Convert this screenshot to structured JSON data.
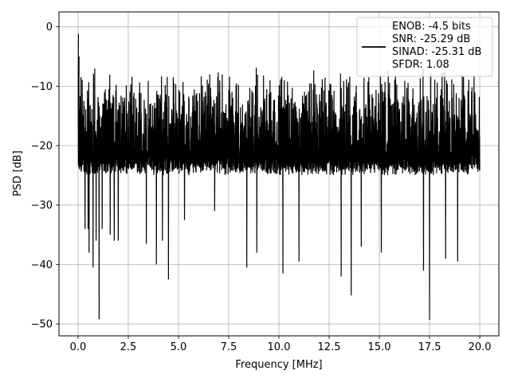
{
  "chart_data": {
    "type": "line",
    "xlabel": "Frequency [MHz]",
    "ylabel": "PSD [dB]",
    "xlim": [
      -0.95,
      20.95
    ],
    "ylim": [
      -52.0,
      2.5
    ],
    "xticks": [
      0.0,
      2.5,
      5.0,
      7.5,
      10.0,
      12.5,
      15.0,
      17.5,
      20.0
    ],
    "xtick_labels": [
      "0.0",
      "2.5",
      "5.0",
      "7.5",
      "10.0",
      "12.5",
      "15.0",
      "17.5",
      "20.0"
    ],
    "yticks": [
      0,
      -10,
      -20,
      -30,
      -40,
      -50
    ],
    "ytick_labels": [
      "0",
      "−10",
      "−20",
      "−30",
      "−40",
      "−50"
    ],
    "grid": true,
    "legend_placement": "upper right",
    "series": [
      {
        "name": "ENOB: -4.5 bits\nSNR: -25.29 dB\nSINAD: -25.31 dB\nSFDR: 1.08",
        "color": "#000000",
        "description_points": {
          "x_range": [
            0.0,
            20.0
          ],
          "dense_band_approx": [
            -25,
            -8
          ],
          "peak": [
            [
              0.02,
              -1.2
            ],
            [
              0.05,
              -5.0
            ]
          ],
          "deep_nulls": [
            [
              0.35,
              -34.0
            ],
            [
              0.5,
              -34.0
            ],
            [
              0.55,
              -35.5
            ],
            [
              0.55,
              -38.0
            ],
            [
              0.75,
              -40.5
            ],
            [
              0.9,
              -36.0
            ],
            [
              1.05,
              -49.2
            ],
            [
              1.2,
              -34.0
            ],
            [
              1.6,
              -35.0
            ],
            [
              1.8,
              -36.0
            ],
            [
              2.0,
              -36.0
            ],
            [
              3.4,
              -36.5
            ],
            [
              3.9,
              -40.0
            ],
            [
              4.2,
              -36.0
            ],
            [
              4.5,
              -42.5
            ],
            [
              5.3,
              -32.5
            ],
            [
              6.8,
              -31.0
            ],
            [
              8.4,
              -40.5
            ],
            [
              8.9,
              -38.0
            ],
            [
              10.2,
              -41.5
            ],
            [
              11.0,
              -39.5
            ],
            [
              13.1,
              -42.0
            ],
            [
              13.6,
              -45.2
            ],
            [
              14.1,
              -37.0
            ],
            [
              15.1,
              -38.0
            ],
            [
              17.2,
              -41.0
            ],
            [
              17.5,
              -49.3
            ],
            [
              18.3,
              -39.0
            ],
            [
              18.9,
              -39.5
            ]
          ]
        }
      }
    ]
  }
}
